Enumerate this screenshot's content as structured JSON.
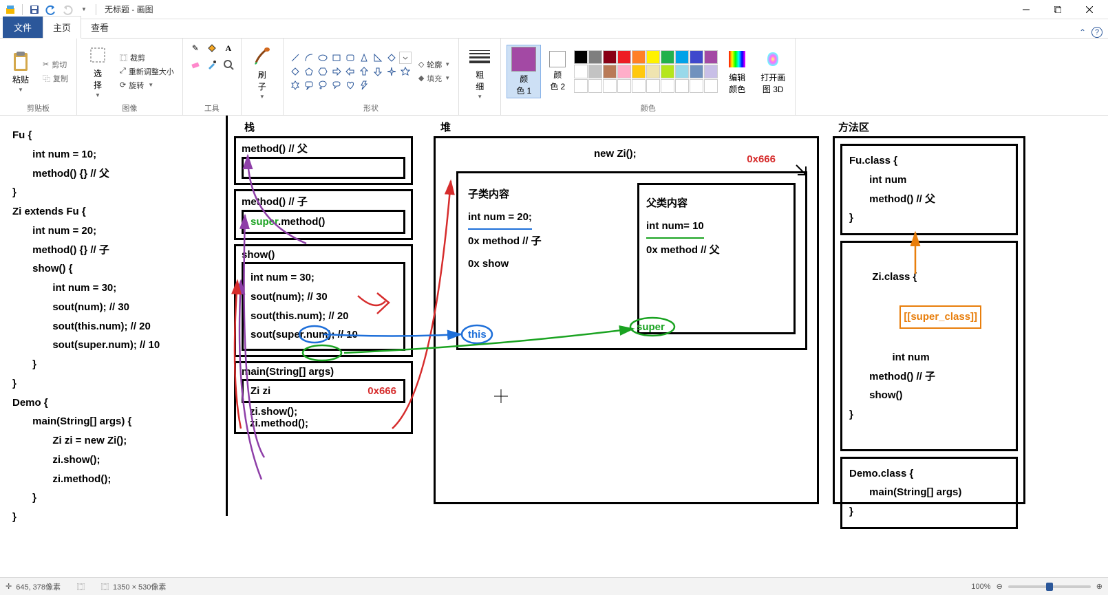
{
  "window": {
    "title": "无标题 - 画图"
  },
  "tabs": {
    "file": "文件",
    "home": "主页",
    "view": "查看"
  },
  "ribbon": {
    "clipboard": {
      "label": "剪贴板",
      "paste": "粘贴",
      "cut": "剪切",
      "copy": "复制"
    },
    "image": {
      "label": "图像",
      "select": "选\n择",
      "crop": "裁剪",
      "resize": "重新调整大小",
      "rotate": "旋转"
    },
    "tools": {
      "label": "工具"
    },
    "brushes": {
      "label": "刷\n子"
    },
    "shapes": {
      "label": "形状",
      "outline": "轮廓",
      "fill": "填充"
    },
    "stroke": {
      "label": "粗\n细"
    },
    "color1": {
      "label": "颜\n色 1",
      "value": "#a349a4"
    },
    "color2": {
      "label": "颜\n色 2",
      "value": "#ffffff"
    },
    "colors": {
      "label": "颜色"
    },
    "editcolors": "编辑\n颜色",
    "paint3d": "打开画\n图 3D",
    "palette": [
      "#000000",
      "#7f7f7f",
      "#880015",
      "#ed1c24",
      "#ff7f27",
      "#fff200",
      "#22b14c",
      "#00a2e8",
      "#3f48cc",
      "#a349a4",
      "#ffffff",
      "#c3c3c3",
      "#b97a57",
      "#ffaec9",
      "#ffc90e",
      "#efe4b0",
      "#b5e61d",
      "#99d9ea",
      "#7092be",
      "#c8bfe7",
      "#ffffff",
      "#ffffff",
      "#ffffff",
      "#ffffff",
      "#ffffff",
      "#ffffff",
      "#ffffff",
      "#ffffff",
      "#ffffff",
      "#ffffff"
    ]
  },
  "diagram": {
    "headers": {
      "stack": "栈",
      "heap": "堆",
      "methodarea": "方法区"
    },
    "code_left": "Fu {\n       int num = 10;\n       method() {} // 父\n}\nZi extends Fu {\n       int num = 20;\n       method() {} // 子\n       show() {\n              int num = 30;\n              sout(num); // 30\n              sout(this.num); // 20\n              sout(super.num); // 10\n       }\n}\nDemo {\n       main(String[] args) {\n              Zi zi = new Zi();\n              zi.show();\n              zi.method();\n       }\n}",
    "stack": {
      "f1_title": "method() // 父",
      "f2_title": "method() // 子",
      "f2_body": "super.method()",
      "f3_title": "show()",
      "f3_lines": [
        "int num = 30;",
        "sout(num); // 30",
        "sout(this.num); // 20",
        "sout(super.num); // 10"
      ],
      "f4_title": "main(String[] args)",
      "f4_var": "Zi zi",
      "f4_addr": "0x666",
      "f4_calls": [
        "zi.show();",
        "zi.method();"
      ]
    },
    "heap": {
      "new": "new Zi();",
      "addr": "0x666",
      "child_title": "子类内容",
      "child_num": "int num = 20;",
      "child_method": "0x method // 子",
      "child_show": "0x show",
      "parent_title": "父类内容",
      "parent_num": "int num= 10",
      "parent_method": "0x method // 父",
      "this_label": "this",
      "super_label": "super"
    },
    "method": {
      "fu": "Fu.class {\n       int num\n       method() // 父\n}",
      "zi_head": "Zi.class {",
      "zi_super": "[[super_class]]",
      "zi_body": "       int num\n       method() // 子\n       show()\n}",
      "demo": "Demo.class {\n       main(String[] args)\n}"
    },
    "colors": {
      "red": "#d62c2c",
      "blue": "#1e6fd9",
      "green": "#1aa321",
      "purple": "#8e3fa8",
      "orange": "#e87e0c"
    }
  },
  "status": {
    "cursor_prefix": "✛",
    "cursor": "645, 378像素",
    "canvas_size": "1350 × 530像素",
    "zoom": "100%"
  }
}
